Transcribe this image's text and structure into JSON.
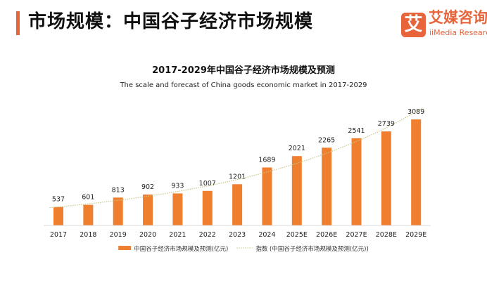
{
  "header": {
    "title": "市场规模：中国谷子经济市场规模",
    "logo_mark": "艾",
    "logo_cn": "艾媒咨询",
    "logo_en": "iiMedia Research"
  },
  "colors": {
    "accent": "#e8643a",
    "bar": "#ef7f2e",
    "trend": "#c9c58a"
  },
  "chart_data": {
    "type": "bar",
    "title": "2017-2029年中国谷子经济市场规模及预测",
    "subtitle": "The scale and forecast of China goods economic market in 2017-2029",
    "categories": [
      "2017",
      "2018",
      "2019",
      "2020",
      "2021",
      "2022",
      "2023",
      "2024",
      "2025E",
      "2026E",
      "2027E",
      "2028E",
      "2029E"
    ],
    "series": [
      {
        "name": "中国谷子经济市场规模及预测(亿元)",
        "values": [
          537,
          601,
          813,
          902,
          933,
          1007,
          1201,
          1689,
          2021,
          2265,
          2541,
          2739,
          3089
        ]
      }
    ],
    "trendline": {
      "type": "exponential",
      "name": "指数 (中国谷子经济市场规模及预测(亿元))"
    },
    "ylim": [
      0,
      3089
    ],
    "grid": false,
    "legend": "bottom"
  }
}
